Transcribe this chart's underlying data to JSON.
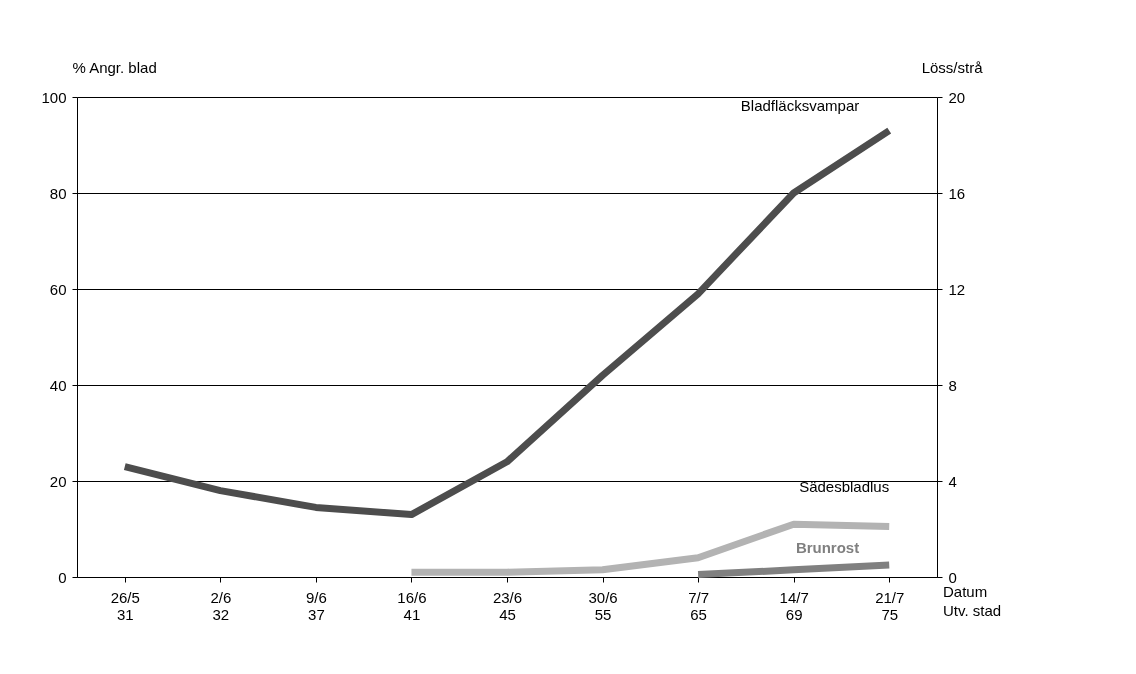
{
  "chart_data": {
    "type": "line",
    "categories": [
      "26/5\n31",
      "2/6\n32",
      "9/6\n37",
      "16/6\n41",
      "23/6\n45",
      "30/6\n55",
      "7/7\n65",
      "14/7\n69",
      "21/7\n75"
    ],
    "xlabel": "Datum\nUtv. stad",
    "ylabel": "% Angr. blad",
    "y2label": "Löss/strå",
    "series": [
      {
        "name": "Bladfläcksvampar",
        "color": "#4d4d4d",
        "values": [
          23,
          18,
          14.5,
          13,
          24,
          42,
          59,
          80,
          93
        ]
      },
      {
        "name": "Sädesbladlus",
        "color": "#b3b3b3",
        "axis": "y2",
        "values": [
          null,
          null,
          null,
          0.2,
          0.2,
          0.3,
          0.8,
          2.2,
          2.1
        ]
      },
      {
        "name": "Brunrost",
        "color": "#808080",
        "values": [
          null,
          null,
          null,
          null,
          null,
          null,
          0.5,
          1.5,
          2.5
        ]
      }
    ],
    "ylim": [
      0,
      100
    ],
    "yticks": [
      0,
      20,
      40,
      60,
      80,
      100
    ],
    "y2lim": [
      0,
      20
    ],
    "y2ticks": [
      0,
      4,
      8,
      12,
      16,
      20
    ],
    "grid": "y"
  }
}
